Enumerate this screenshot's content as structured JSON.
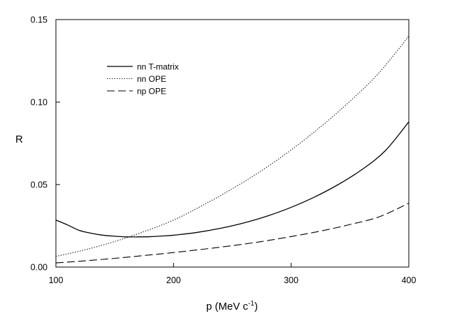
{
  "chart_data": {
    "type": "line",
    "title": "",
    "xlabel": "p (MeV c",
    "xlabel_sup": "-1",
    "xlabel_close": ")",
    "ylabel": "R",
    "xlim": [
      100,
      400
    ],
    "ylim": [
      0.0,
      0.15
    ],
    "x_ticks": [
      {
        "value": 100,
        "label": "100"
      },
      {
        "value": 200,
        "label": "200"
      },
      {
        "value": 300,
        "label": "300"
      },
      {
        "value": 400,
        "label": "400"
      }
    ],
    "y_ticks": [
      {
        "value": 0.0,
        "label": "0.00"
      },
      {
        "value": 0.05,
        "label": "0.05"
      },
      {
        "value": 0.1,
        "label": "0.10"
      },
      {
        "value": 0.15,
        "label": "0.15"
      }
    ],
    "grid": false,
    "legend_position": "top-left",
    "series": [
      {
        "name": "nn T-matrix",
        "style": "solid",
        "color": "#000000",
        "x": [
          100,
          110,
          120,
          130,
          140,
          150,
          160,
          170,
          180,
          190,
          200,
          220,
          240,
          260,
          280,
          300,
          320,
          340,
          360,
          380,
          400
        ],
        "y": [
          0.0285,
          0.0255,
          0.0222,
          0.0205,
          0.0193,
          0.0187,
          0.0183,
          0.0183,
          0.0184,
          0.0188,
          0.0193,
          0.021,
          0.0235,
          0.0268,
          0.031,
          0.0362,
          0.0425,
          0.05,
          0.059,
          0.0705,
          0.088
        ]
      },
      {
        "name": "nn OPE",
        "style": "dotted",
        "color": "#000000",
        "x": [
          100,
          125,
          150,
          175,
          200,
          225,
          250,
          275,
          300,
          325,
          350,
          375,
          400
        ],
        "y": [
          0.0065,
          0.0105,
          0.0155,
          0.0215,
          0.0285,
          0.0375,
          0.0475,
          0.0585,
          0.071,
          0.085,
          0.1005,
          0.118,
          0.14
        ]
      },
      {
        "name": "np OPE",
        "style": "dashed",
        "color": "#000000",
        "x": [
          100,
          125,
          150,
          175,
          200,
          225,
          250,
          275,
          300,
          325,
          350,
          375,
          400
        ],
        "y": [
          0.0025,
          0.0038,
          0.0053,
          0.007,
          0.0088,
          0.0108,
          0.013,
          0.0155,
          0.0185,
          0.0218,
          0.0258,
          0.0305,
          0.0387
        ]
      }
    ]
  }
}
